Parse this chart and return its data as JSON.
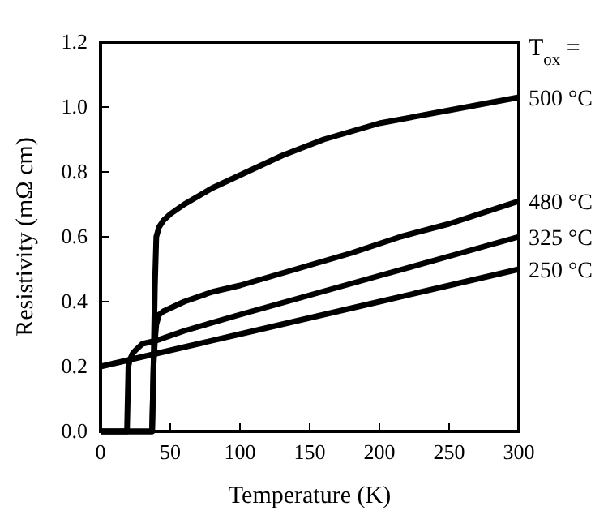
{
  "chart_data": {
    "type": "line",
    "xlabel": "Temperature (K)",
    "ylabel": "Resistivity (mΩ cm)",
    "legend_title": "T$_{ox}$ =",
    "xlim": [
      0,
      300
    ],
    "ylim": [
      0,
      1.2
    ],
    "xticks": [
      0,
      50,
      100,
      150,
      200,
      250,
      300
    ],
    "yticks": [
      {
        "value": 0,
        "label": "0.0"
      },
      {
        "value": 0.2,
        "label": "0.2"
      },
      {
        "value": 0.4,
        "label": "0.4"
      },
      {
        "value": 0.6,
        "label": "0.6"
      },
      {
        "value": 0.8,
        "label": "0.8"
      },
      {
        "value": 1,
        "label": "1.0"
      },
      {
        "value": 1.2,
        "label": "1.2"
      }
    ],
    "legend": "right",
    "grid": false,
    "marker": "none",
    "line_style": "solid",
    "series": [
      {
        "name": "500 °C",
        "color": "#000000",
        "x": [
          0,
          37,
          38,
          39,
          40,
          42,
          45,
          50,
          60,
          80,
          100,
          130,
          160,
          200,
          250,
          300
        ],
        "values": [
          0,
          0,
          0.2,
          0.45,
          0.6,
          0.63,
          0.65,
          0.67,
          0.7,
          0.75,
          0.79,
          0.85,
          0.9,
          0.95,
          0.99,
          1.03
        ]
      },
      {
        "name": "480 °C",
        "color": "#000000",
        "x": [
          0,
          37,
          38,
          39,
          40,
          42,
          45,
          50,
          60,
          80,
          100,
          140,
          180,
          215,
          250,
          300
        ],
        "values": [
          0,
          0,
          0.2,
          0.28,
          0.33,
          0.36,
          0.37,
          0.38,
          0.4,
          0.43,
          0.45,
          0.5,
          0.55,
          0.6,
          0.64,
          0.71
        ]
      },
      {
        "name": "325 °C",
        "color": "#000000",
        "x": [
          0,
          19,
          20,
          21,
          23,
          25,
          30,
          40,
          60,
          100,
          150,
          200,
          250,
          300
        ],
        "values": [
          0,
          0,
          0.2,
          0.22,
          0.24,
          0.25,
          0.27,
          0.28,
          0.31,
          0.36,
          0.42,
          0.48,
          0.54,
          0.6
        ]
      },
      {
        "name": "250 °C",
        "color": "#000000",
        "x": [
          0,
          20,
          40,
          60,
          100,
          150,
          200,
          250,
          300
        ],
        "values": [
          0.2,
          0.22,
          0.24,
          0.26,
          0.3,
          0.35,
          0.4,
          0.45,
          0.5
        ]
      }
    ]
  }
}
